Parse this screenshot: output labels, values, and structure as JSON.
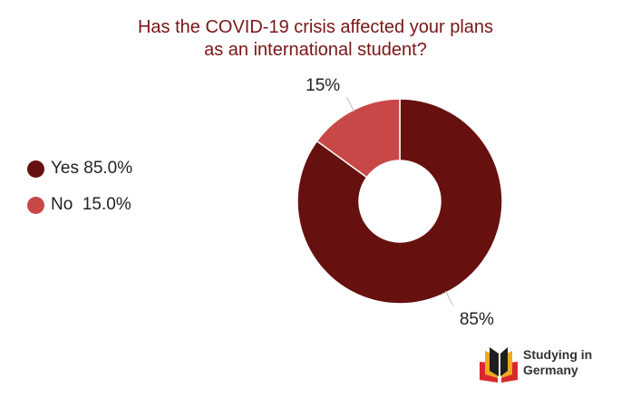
{
  "title_line1": "Has the COVID-19 crisis affected your plans",
  "title_line2": "as an international student?",
  "legend": [
    {
      "text": "Yes 85.0%",
      "color": "#671010"
    },
    {
      "text": "No  15.0%",
      "color": "#c84848"
    }
  ],
  "chart_data": {
    "type": "pie",
    "variant": "donut",
    "categories": [
      "Yes",
      "No"
    ],
    "values": [
      85.0,
      15.0
    ],
    "colors": [
      "#671010",
      "#c84848"
    ],
    "data_labels": [
      "85%",
      "15%"
    ],
    "legend_placement": "left",
    "title": "Has the COVID-19 crisis affected your plans as an international student?"
  },
  "logo": {
    "line1": "Studying in",
    "line2": "Germany",
    "colors": [
      "#d8282e",
      "#f2a81d",
      "#1e1e1e"
    ]
  }
}
